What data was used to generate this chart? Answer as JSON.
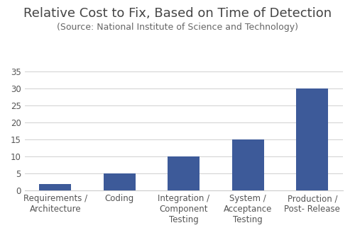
{
  "title": "Relative Cost to Fix, Based on Time of Detection",
  "subtitle": "(Source: National Institute of Science and Technology)",
  "categories": [
    "Requirements /\nArchitecture",
    "Coding",
    "Integration /\nComponent\nTesting",
    "System /\nAcceptance\nTesting",
    "Production /\nPost- Release"
  ],
  "values": [
    2,
    5,
    10,
    15,
    30
  ],
  "bar_color": "#3D5A99",
  "ylim": [
    0,
    37
  ],
  "yticks": [
    0,
    5,
    10,
    15,
    20,
    25,
    30,
    35
  ],
  "background_color": "#ffffff",
  "title_fontsize": 13,
  "subtitle_fontsize": 9,
  "tick_label_fontsize": 8.5,
  "bar_width": 0.5
}
